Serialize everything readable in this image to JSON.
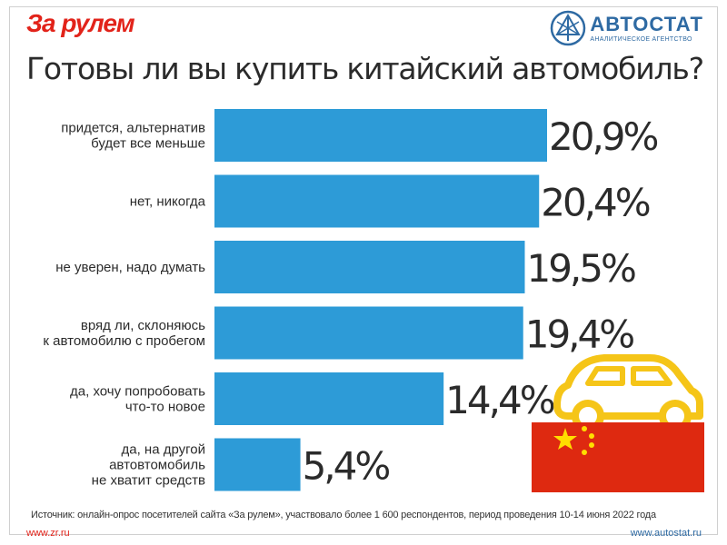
{
  "header": {
    "logo_left": "За рулем",
    "logo_right_name": "АВТОСТАТ",
    "logo_right_sub": "АНАЛИТИЧЕСКОЕ АГЕНТСТВО",
    "title": "Готовы ли вы купить китайский автомобиль?"
  },
  "footer": {
    "source": "Источник: онлайн-опрос посетителей сайта «За рулем», участвовало более 1 600 респондентов, период проведения 10-14 июня 2022 года",
    "url_left": "www.zr.ru",
    "url_right": "www.autostat.ru"
  },
  "colors": {
    "bar": "#2d9bd7",
    "brand_red": "#e2231a",
    "brand_blue": "#2e6aa3",
    "car": "#f5c518",
    "flag_red": "#de2910",
    "flag_star": "#ffde00"
  },
  "icons": [
    "car-icon",
    "china-flag-icon",
    "autostat-logo-icon"
  ],
  "chart_data": {
    "type": "bar",
    "orientation": "horizontal",
    "title": "Готовы ли вы купить китайский автомобиль?",
    "categories": [
      [
        "придется, альтернатив",
        "будет все меньше"
      ],
      [
        "нет, никогда"
      ],
      [
        "не уверен, надо думать"
      ],
      [
        "вряд ли, склоняюсь",
        "к автомобилю с пробегом"
      ],
      [
        "да, хочу попробовать",
        "что-то новое"
      ],
      [
        "да, на другой",
        "автовтомобиль",
        "не хватит средств"
      ]
    ],
    "values": [
      20.9,
      20.4,
      19.5,
      19.4,
      14.4,
      5.4
    ],
    "value_labels": [
      "20,9%",
      "20,4%",
      "19,5%",
      "19,4%",
      "14,4%",
      "5,4%"
    ],
    "unit": "%",
    "xlim": [
      0,
      20.9
    ],
    "grid": false,
    "legend": "none"
  }
}
